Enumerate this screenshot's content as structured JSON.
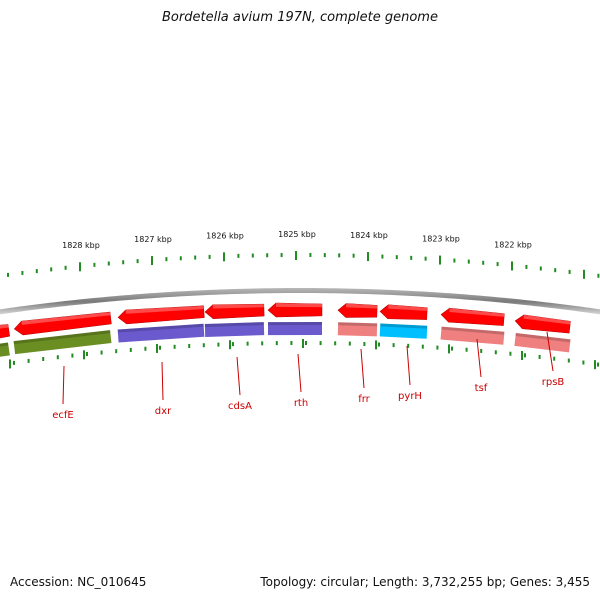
{
  "title": "Bordetella avium 197N, complete genome",
  "footer": {
    "accession": "Accession: NC_010645",
    "summary": "Topology: circular; Length: 3,732,255 bp; Genes: 3,455"
  },
  "ruler": [
    {
      "label": "1828 kbp"
    },
    {
      "label": "1827 kbp"
    },
    {
      "label": "1826 kbp"
    },
    {
      "label": "1825 kbp"
    },
    {
      "label": "1824 kbp"
    },
    {
      "label": "1823 kbp"
    },
    {
      "label": "1822 kbp"
    }
  ],
  "genes": [
    {
      "name": "ecfE",
      "cog_color": "#6b8e23"
    },
    {
      "name": "dxr",
      "cog_color": "#6a5acd"
    },
    {
      "name": "cdsA",
      "cog_color": "#6a5acd"
    },
    {
      "name": "rth",
      "cog_color": "#6a5acd"
    },
    {
      "name": "frr",
      "cog_color": "#f08080"
    },
    {
      "name": "pyrH",
      "cog_color": "#00bfff"
    },
    {
      "name": "tsf",
      "cog_color": "#f08080"
    },
    {
      "name": "rpsB",
      "cog_color": "#f08080"
    }
  ],
  "colors": {
    "cds": "#ff0000",
    "backbone": "#888888",
    "tick": "#228b22",
    "label": "#cc0000"
  }
}
